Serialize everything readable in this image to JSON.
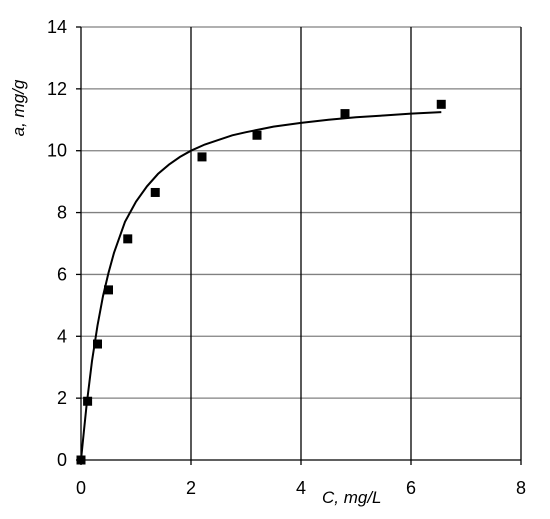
{
  "chart_data": {
    "type": "scatter",
    "xlabel": "C,  mg/L",
    "ylabel": "a, mg/g",
    "xlim": [
      0,
      8
    ],
    "ylim": [
      0,
      14
    ],
    "x_ticks": [
      0,
      2,
      4,
      6,
      8
    ],
    "y_ticks": [
      0,
      2,
      4,
      6,
      8,
      10,
      12,
      14
    ],
    "grid": true,
    "legend": "none",
    "colors": {
      "points": "#000000",
      "curve": "#000000",
      "grid": "#808080",
      "axis": "#000000"
    },
    "series": [
      {
        "type": "scatter",
        "marker": "square",
        "x": [
          0.0,
          0.12,
          0.3,
          0.5,
          0.85,
          1.35,
          2.2,
          3.2,
          4.8,
          6.55
        ],
        "y": [
          0.0,
          1.9,
          3.75,
          5.5,
          7.15,
          8.65,
          9.8,
          10.5,
          11.2,
          11.5
        ]
      },
      {
        "type": "line",
        "x": [
          0.0,
          0.05,
          0.1,
          0.2,
          0.3,
          0.4,
          0.5,
          0.6,
          0.8,
          1.0,
          1.2,
          1.4,
          1.6,
          1.8,
          2.0,
          2.25,
          2.5,
          2.75,
          3.0,
          3.5,
          4.0,
          4.5,
          5.0,
          5.5,
          6.0,
          6.55
        ],
        "y": [
          0.0,
          0.9,
          1.75,
          3.2,
          4.35,
          5.3,
          6.05,
          6.7,
          7.7,
          8.35,
          8.85,
          9.25,
          9.55,
          9.8,
          10.0,
          10.2,
          10.35,
          10.5,
          10.6,
          10.78,
          10.9,
          11.0,
          11.08,
          11.14,
          11.2,
          11.25
        ]
      }
    ]
  }
}
